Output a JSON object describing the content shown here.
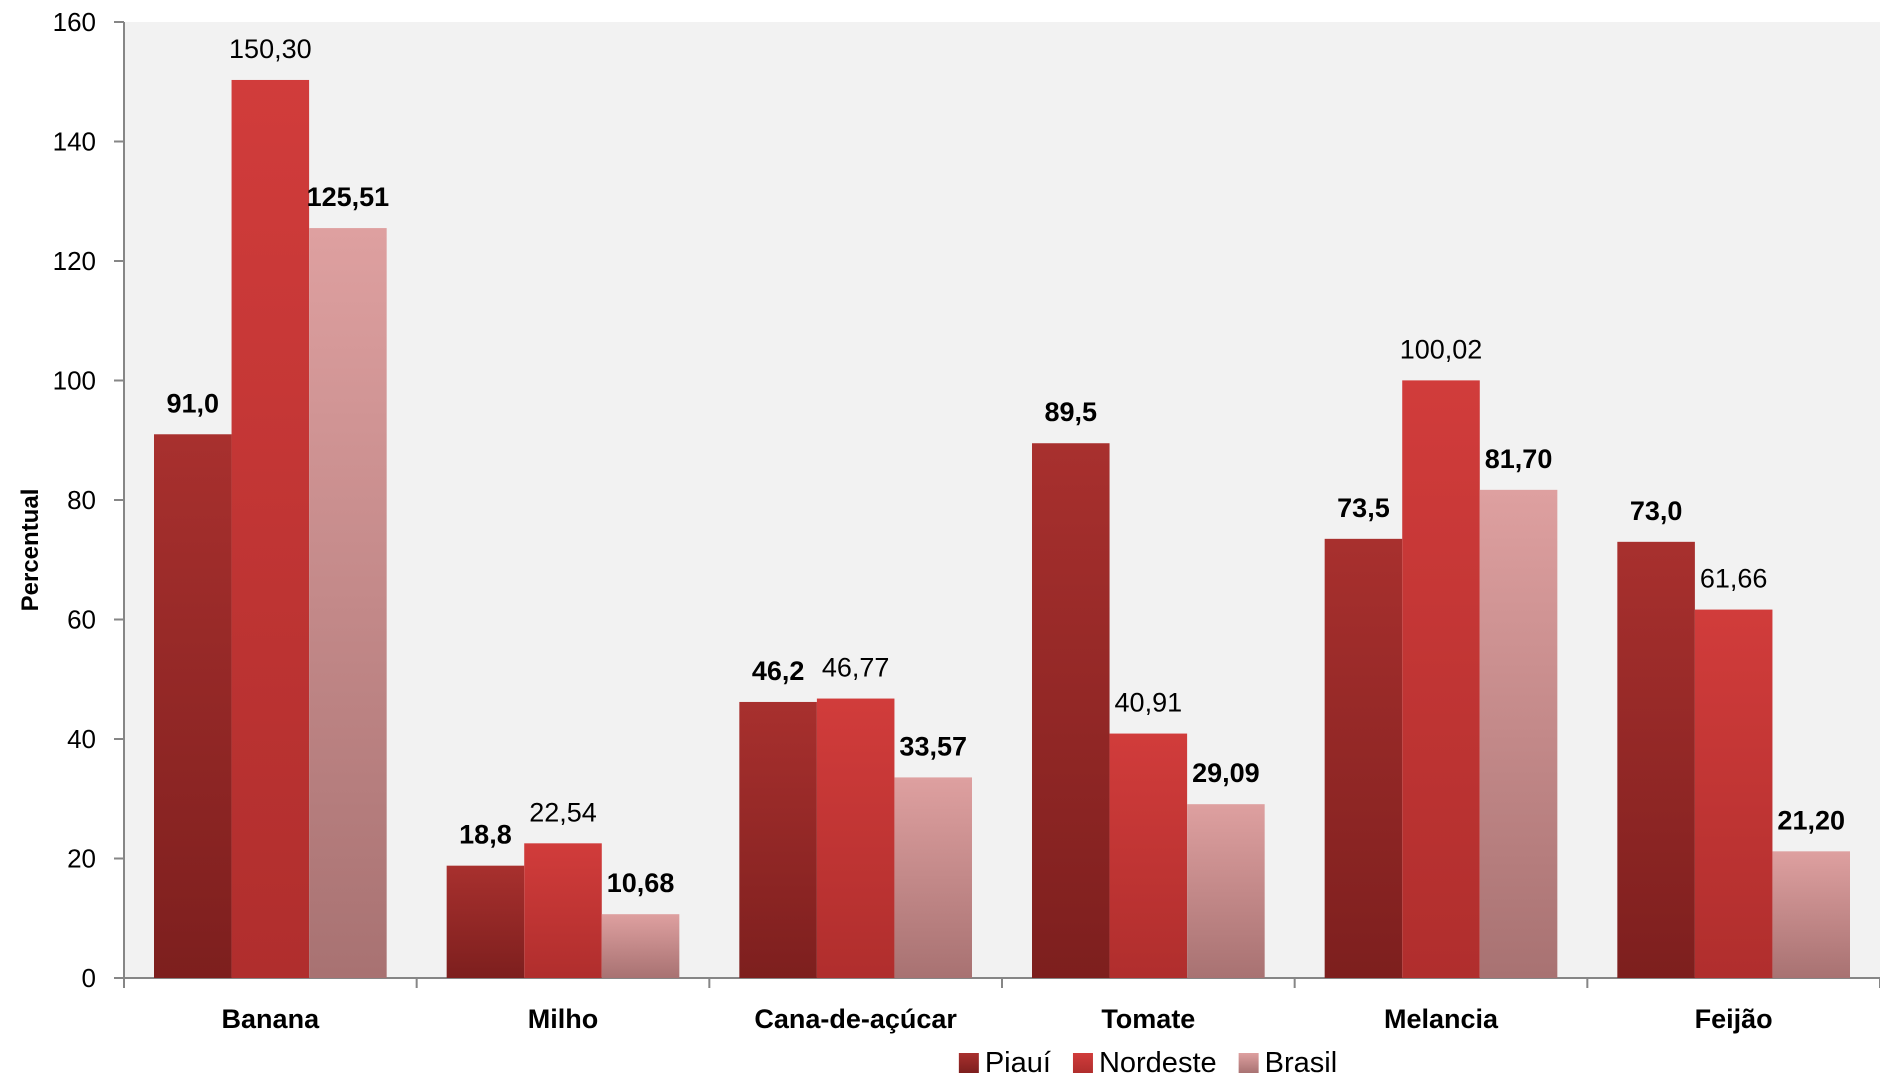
{
  "chart_data": {
    "type": "bar",
    "categories": [
      "Banana",
      "Milho",
      "Cana-de-açúcar",
      "Tomate",
      "Melancia",
      "Feijão"
    ],
    "series": [
      {
        "name": "Piauí",
        "values": [
          91.0,
          18.8,
          46.2,
          89.5,
          73.5,
          73.0
        ],
        "labels": [
          "91,0",
          "18,8",
          "46,2",
          "89,5",
          "73,5",
          "73,0"
        ],
        "label_bold": [
          true,
          true,
          true,
          true,
          true,
          true
        ],
        "color_top": "#a8302e",
        "color_bottom": "#7d1f1e"
      },
      {
        "name": "Nordeste",
        "values": [
          150.3,
          22.54,
          46.77,
          40.91,
          100.02,
          61.66
        ],
        "labels": [
          "150,30",
          "22,54",
          "46,77",
          "40,91",
          "100,02",
          "61,66"
        ],
        "label_bold": [
          false,
          false,
          false,
          false,
          false,
          false
        ],
        "color_top": "#d13c3b",
        "color_bottom": "#b02e2d"
      },
      {
        "name": "Brasil",
        "values": [
          125.51,
          10.68,
          33.57,
          29.09,
          81.7,
          21.2
        ],
        "labels": [
          "125,51",
          "10,68",
          "33,57",
          "29,09",
          "81,70",
          "21,20"
        ],
        "label_bold": [
          true,
          true,
          true,
          true,
          true,
          true
        ],
        "color_top": "#dea0a0",
        "color_bottom": "#a87272"
      }
    ],
    "title": "",
    "xlabel": "",
    "ylabel": "Percentual",
    "ylim": [
      0,
      160
    ],
    "yticks": [
      "0",
      "20",
      "40",
      "60",
      "80",
      "100",
      "120",
      "140",
      "160"
    ],
    "plot_background": "#f2f2f2",
    "grid": false,
    "legend_position": "bottom"
  }
}
